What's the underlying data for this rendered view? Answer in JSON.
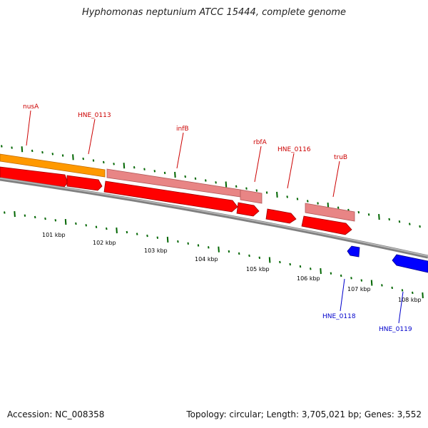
{
  "title": "Hyphomonas neptunium ATCC 15444, complete genome",
  "footer": {
    "accession": "Accession: NC_008358",
    "summary": "Topology: circular; Length: 3,705,021 bp; Genes: 3,552"
  },
  "scale_labels": [
    "101 kbp",
    "102 kbp",
    "103 kbp",
    "104 kbp",
    "105 kbp",
    "106 kbp",
    "107 kbp",
    "108 kbp"
  ],
  "colors": {
    "orange_feature": "#ff9900",
    "pink_feature": "#e88585",
    "red_feature": "#ff0000",
    "blue_feature": "#0000ff",
    "backbone": "#808080",
    "tick": "#006600",
    "label_red": "#cc0000",
    "label_blue": "#0000cc"
  },
  "gene_labels": [
    {
      "name": "nusA",
      "strand": "forward"
    },
    {
      "name": "HNE_0113",
      "strand": "forward"
    },
    {
      "name": "infB",
      "strand": "forward"
    },
    {
      "name": "rbfA",
      "strand": "forward"
    },
    {
      "name": "HNE_0116",
      "strand": "forward"
    },
    {
      "name": "truB",
      "strand": "forward"
    },
    {
      "name": "HNE_0118",
      "strand": "reverse"
    },
    {
      "name": "HNE_0119",
      "strand": "reverse"
    }
  ]
}
